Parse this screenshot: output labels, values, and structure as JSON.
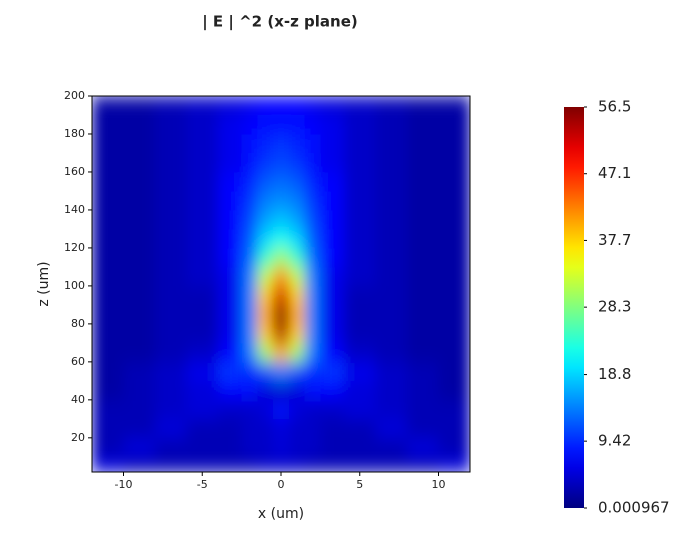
{
  "chart_data": {
    "type": "heatmap",
    "title": "| E | ^2 (x-z plane)",
    "x_label": "x (um)",
    "y_label": "z (um)",
    "xlim": [
      -12,
      12
    ],
    "ylim": [
      2,
      200
    ],
    "xticks": [
      -10,
      -5,
      0,
      5,
      10
    ],
    "yticks": [
      20,
      40,
      60,
      80,
      100,
      120,
      140,
      160,
      180,
      200
    ],
    "x": [
      -11,
      -9,
      -7,
      -5,
      -3,
      -2,
      -1,
      0,
      1,
      2,
      3,
      5,
      7,
      9,
      11
    ],
    "z": [
      5,
      15,
      25,
      35,
      45,
      55,
      65,
      75,
      85,
      95,
      105,
      115,
      125,
      135,
      145,
      155,
      165,
      175,
      185,
      195
    ],
    "values": [
      [
        5,
        3,
        3,
        3,
        3,
        3,
        4,
        4,
        4,
        3,
        3,
        3,
        3,
        3,
        5
      ],
      [
        3,
        5,
        3,
        3,
        3,
        4,
        4,
        5,
        4,
        4,
        3,
        3,
        3,
        5,
        3
      ],
      [
        3,
        3,
        5,
        3,
        3,
        4,
        4,
        5,
        4,
        4,
        3,
        3,
        5,
        3,
        3
      ],
      [
        3,
        3,
        4,
        5,
        4,
        4,
        5,
        8,
        5,
        4,
        4,
        5,
        4,
        3,
        3
      ],
      [
        2,
        3,
        4,
        5,
        7,
        8,
        5,
        4,
        5,
        8,
        7,
        5,
        4,
        3,
        2
      ],
      [
        2,
        3,
        4,
        6,
        10,
        9,
        11,
        14,
        11,
        9,
        10,
        6,
        4,
        3,
        2
      ],
      [
        2,
        2,
        3,
        4,
        7,
        14,
        30,
        40,
        30,
        14,
        7,
        4,
        3,
        2,
        2
      ],
      [
        2,
        2,
        3,
        3,
        6,
        14,
        38,
        54,
        38,
        14,
        6,
        3,
        3,
        2,
        2
      ],
      [
        2,
        2,
        3,
        3,
        6,
        14,
        40,
        56.5,
        40,
        14,
        6,
        3,
        3,
        2,
        2
      ],
      [
        2,
        2,
        3,
        3,
        6,
        14,
        38,
        52,
        38,
        14,
        6,
        3,
        3,
        2,
        2
      ],
      [
        2,
        2,
        3,
        4,
        6,
        14,
        32,
        42,
        32,
        14,
        6,
        4,
        3,
        2,
        2
      ],
      [
        2,
        2,
        3,
        4,
        7,
        13,
        24,
        30,
        24,
        13,
        7,
        4,
        3,
        2,
        2
      ],
      [
        2,
        2,
        3,
        4,
        7,
        12,
        19,
        22,
        19,
        12,
        7,
        4,
        3,
        2,
        2
      ],
      [
        2,
        2,
        3,
        4,
        7,
        11,
        16,
        18,
        16,
        11,
        7,
        4,
        3,
        2,
        2
      ],
      [
        2,
        2,
        3,
        4,
        7,
        10,
        14,
        15,
        14,
        10,
        7,
        4,
        3,
        2,
        2
      ],
      [
        2,
        2,
        3,
        4,
        7,
        9,
        12,
        13,
        12,
        9,
        7,
        4,
        3,
        2,
        2
      ],
      [
        2,
        2,
        3,
        4,
        6,
        8,
        10,
        11,
        10,
        8,
        6,
        4,
        3,
        2,
        2
      ],
      [
        2,
        2,
        3,
        4,
        6,
        8,
        9,
        10,
        9,
        8,
        6,
        4,
        3,
        2,
        2
      ],
      [
        2,
        2,
        3,
        4,
        6,
        7,
        8,
        8,
        8,
        7,
        6,
        4,
        3,
        2,
        2
      ],
      [
        2,
        2,
        3,
        4,
        5,
        6,
        7,
        7,
        7,
        6,
        5,
        4,
        3,
        2,
        2
      ]
    ],
    "colormap": "jet",
    "clim": [
      0.000967,
      56.5
    ],
    "colorbar_ticks": [
      0.000967,
      9.42,
      18.8,
      28.3,
      37.7,
      47.1,
      56.5
    ]
  }
}
